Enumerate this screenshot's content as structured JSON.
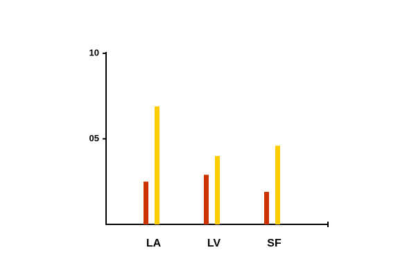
{
  "chart_data": {
    "type": "bar",
    "categories": [
      "LA",
      "LV",
      "SF"
    ],
    "series": [
      {
        "color": "#cc3300",
        "values": [
          2.5,
          2.9,
          1.9
        ]
      },
      {
        "color": "#ffcc00",
        "values": [
          6.9,
          4.0,
          4.6
        ]
      }
    ],
    "ylim": [
      0,
      10
    ],
    "yticks": [
      {
        "value": 5,
        "label": "05"
      },
      10
    ]
  }
}
